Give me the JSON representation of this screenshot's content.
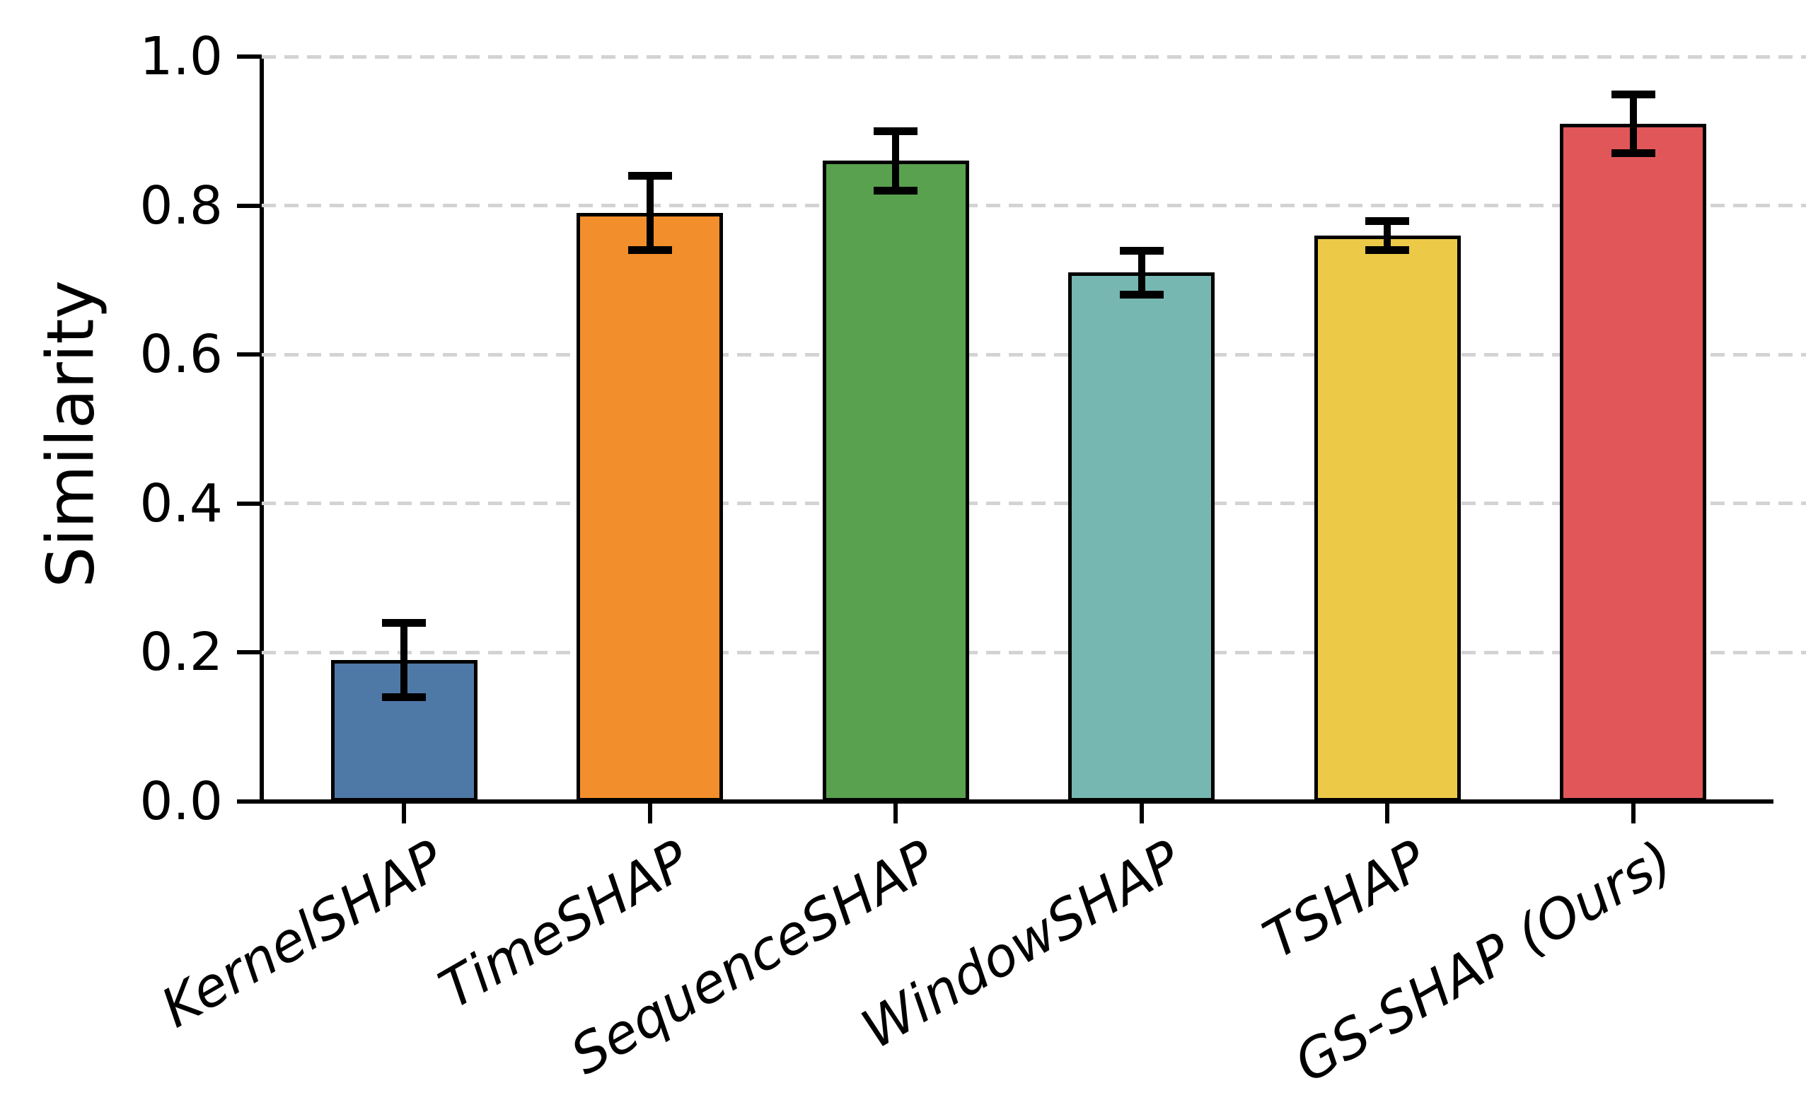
{
  "chart_data": {
    "type": "bar",
    "title": "",
    "xlabel": "",
    "ylabel": "Similarity",
    "categories": [
      "KernelSHAP",
      "TimeSHAP",
      "SequenceSHAP",
      "WindowSHAP",
      "TSHAP",
      "GS-SHAP (Ours)"
    ],
    "values": [
      0.19,
      0.79,
      0.86,
      0.71,
      0.76,
      0.91
    ],
    "error_bars": [
      0.05,
      0.05,
      0.04,
      0.03,
      0.02,
      0.04
    ],
    "bar_colors": [
      "#4e79a7",
      "#f28e2b",
      "#59a14f",
      "#76b7b2",
      "#edc948",
      "#e15759"
    ],
    "bar_edge_color": "#000000",
    "error_bar_color": "#000000",
    "ylim": [
      0.0,
      1.0
    ],
    "ytick_labels": [
      "0.0",
      "0.2",
      "0.4",
      "0.6",
      "0.8",
      "1.0"
    ],
    "grid": "horizontal-dashed",
    "grid_color": "#d3d3d3",
    "legend_position": "none",
    "x_tick_rotation_deg": 30,
    "x_tick_font_style": "italic"
  }
}
